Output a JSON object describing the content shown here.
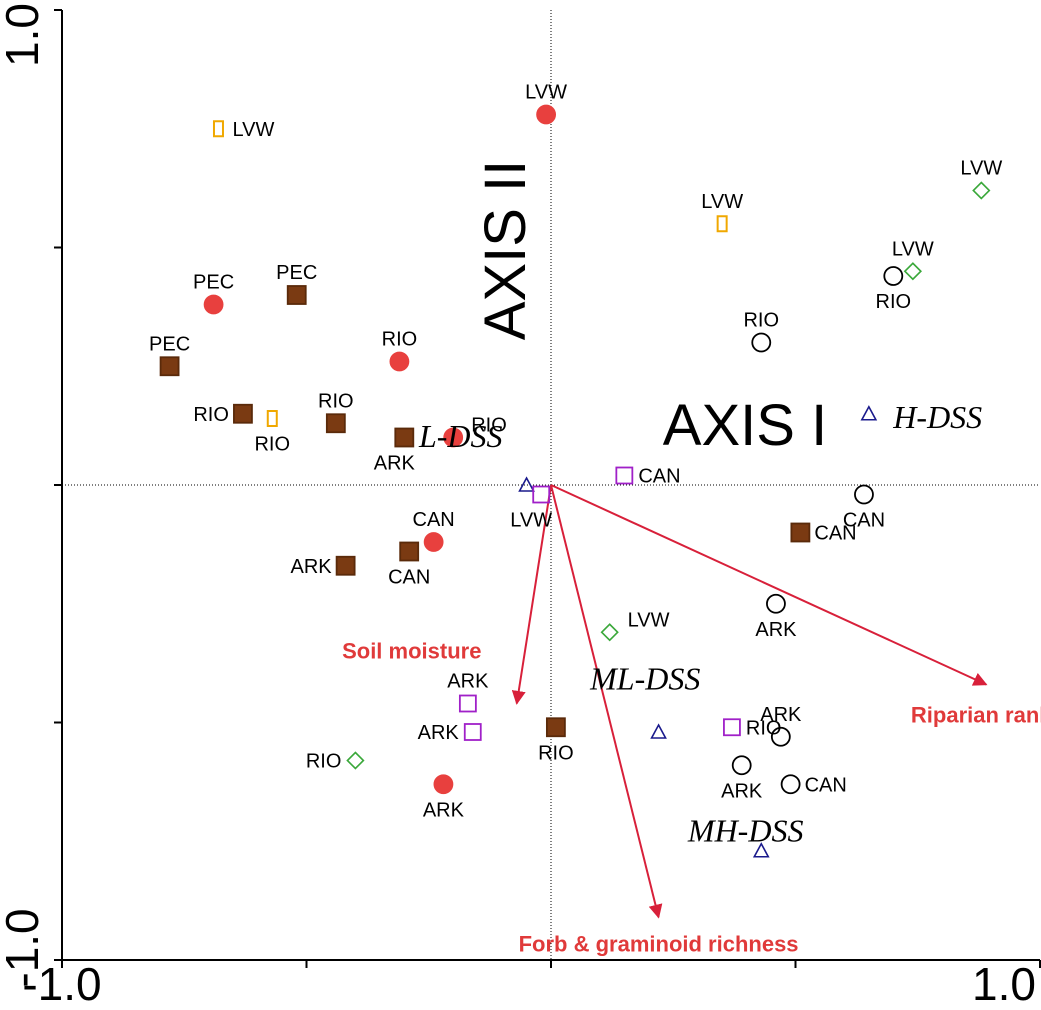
{
  "chart_data": {
    "type": "scatter",
    "title": "",
    "xlim": [
      -1.0,
      1.0
    ],
    "ylim": [
      -1.0,
      1.0
    ],
    "x_tick_labels": [
      "-1.0",
      "1.0"
    ],
    "y_tick_labels": [
      "-1.0",
      "1.0"
    ],
    "axis_names": {
      "x": "AXIS I",
      "y": "AXIS II"
    },
    "grid": false,
    "zero_lines": true,
    "marker_styles": {
      "red_circle": {
        "shape": "circle",
        "fill": "#e8403e",
        "stroke": "#e8403e"
      },
      "brown_square": {
        "shape": "square",
        "fill": "#7a3a12",
        "stroke": "#5a2a0a"
      },
      "orange_rect": {
        "shape": "tall-rect",
        "fill": "none",
        "stroke": "#f0a800"
      },
      "green_diamond": {
        "shape": "diamond",
        "fill": "none",
        "stroke": "#3aa83a"
      },
      "black_circle": {
        "shape": "circle",
        "fill": "none",
        "stroke": "#000000"
      },
      "purple_square": {
        "shape": "square",
        "fill": "none",
        "stroke": "#a020c8"
      },
      "navy_triangle": {
        "shape": "triangle",
        "fill": "none",
        "stroke": "#1a1a8c"
      }
    },
    "points": [
      {
        "x": -0.68,
        "y": 0.75,
        "label": "LVW",
        "style": "orange_rect",
        "lab_pos": "right"
      },
      {
        "x": -0.01,
        "y": 0.78,
        "label": "LVW",
        "style": "red_circle",
        "lab_pos": "above"
      },
      {
        "x": 0.35,
        "y": 0.55,
        "label": "LVW",
        "style": "orange_rect",
        "lab_pos": "above"
      },
      {
        "x": 0.88,
        "y": 0.62,
        "label": "LVW",
        "style": "green_diamond",
        "lab_pos": "above"
      },
      {
        "x": 0.74,
        "y": 0.45,
        "label": "LVW",
        "style": "green_diamond",
        "lab_pos": "above"
      },
      {
        "x": 0.7,
        "y": 0.44,
        "label": "RIO",
        "style": "black_circle",
        "lab_pos": "below"
      },
      {
        "x": 0.43,
        "y": 0.3,
        "label": "RIO",
        "style": "black_circle",
        "lab_pos": "above"
      },
      {
        "x": -0.69,
        "y": 0.38,
        "label": "PEC",
        "style": "red_circle",
        "lab_pos": "above"
      },
      {
        "x": -0.52,
        "y": 0.4,
        "label": "PEC",
        "style": "brown_square",
        "lab_pos": "above"
      },
      {
        "x": -0.78,
        "y": 0.25,
        "label": "PEC",
        "style": "brown_square",
        "lab_pos": "above"
      },
      {
        "x": -0.31,
        "y": 0.26,
        "label": "RIO",
        "style": "red_circle",
        "lab_pos": "above"
      },
      {
        "x": -0.63,
        "y": 0.15,
        "label": "RIO",
        "style": "brown_square",
        "lab_pos": "left"
      },
      {
        "x": -0.57,
        "y": 0.14,
        "label": "RIO",
        "style": "orange_rect",
        "lab_pos": "below"
      },
      {
        "x": -0.44,
        "y": 0.13,
        "label": "RIO",
        "style": "brown_square",
        "lab_pos": "above"
      },
      {
        "x": -0.3,
        "y": 0.1,
        "label": "ARK",
        "style": "brown_square",
        "lab_pos": "belowleft"
      },
      {
        "x": -0.2,
        "y": 0.1,
        "label": "RIO",
        "style": "red_circle",
        "lab_pos": "aboveright"
      },
      {
        "x": 0.15,
        "y": 0.02,
        "label": "CAN",
        "style": "purple_square",
        "lab_pos": "right"
      },
      {
        "x": -0.05,
        "y": 0.0,
        "label": "",
        "style": "navy_triangle",
        "lab_pos": "none"
      },
      {
        "x": -0.02,
        "y": -0.02,
        "label": "LVW",
        "style": "purple_square",
        "lab_pos": "belowleft"
      },
      {
        "x": 0.64,
        "y": -0.02,
        "label": "CAN",
        "style": "black_circle",
        "lab_pos": "below"
      },
      {
        "x": 0.65,
        "y": 0.15,
        "label": "",
        "style": "navy_triangle",
        "lab_pos": "none"
      },
      {
        "x": 0.51,
        "y": -0.1,
        "label": "CAN",
        "style": "brown_square",
        "lab_pos": "right"
      },
      {
        "x": -0.24,
        "y": -0.12,
        "label": "CAN",
        "style": "red_circle",
        "lab_pos": "above"
      },
      {
        "x": -0.29,
        "y": -0.14,
        "label": "CAN",
        "style": "brown_square",
        "lab_pos": "below"
      },
      {
        "x": -0.42,
        "y": -0.17,
        "label": "ARK",
        "style": "brown_square",
        "lab_pos": "left"
      },
      {
        "x": 0.12,
        "y": -0.31,
        "label": "LVW",
        "style": "green_diamond",
        "lab_pos": "aboveright"
      },
      {
        "x": 0.46,
        "y": -0.25,
        "label": "ARK",
        "style": "black_circle",
        "lab_pos": "below"
      },
      {
        "x": -0.17,
        "y": -0.46,
        "label": "ARK",
        "style": "purple_square",
        "lab_pos": "above"
      },
      {
        "x": -0.16,
        "y": -0.52,
        "label": "ARK",
        "style": "purple_square",
        "lab_pos": "left"
      },
      {
        "x": 0.01,
        "y": -0.51,
        "label": "RIO",
        "style": "brown_square",
        "lab_pos": "below"
      },
      {
        "x": 0.22,
        "y": -0.52,
        "label": "",
        "style": "navy_triangle",
        "lab_pos": "none"
      },
      {
        "x": 0.37,
        "y": -0.51,
        "label": "RIO",
        "style": "purple_square",
        "lab_pos": "right"
      },
      {
        "x": 0.47,
        "y": -0.53,
        "label": "ARK",
        "style": "black_circle",
        "lab_pos": "above"
      },
      {
        "x": -0.4,
        "y": -0.58,
        "label": "RIO",
        "style": "green_diamond",
        "lab_pos": "left"
      },
      {
        "x": -0.22,
        "y": -0.63,
        "label": "ARK",
        "style": "red_circle",
        "lab_pos": "below"
      },
      {
        "x": 0.39,
        "y": -0.59,
        "label": "ARK",
        "style": "black_circle",
        "lab_pos": "below"
      },
      {
        "x": 0.49,
        "y": -0.63,
        "label": "CAN",
        "style": "black_circle",
        "lab_pos": "right"
      },
      {
        "x": 0.43,
        "y": -0.77,
        "label": "",
        "style": "navy_triangle",
        "lab_pos": "none"
      }
    ],
    "centroid_labels": [
      {
        "x": -0.27,
        "y": 0.08,
        "text": "L-DSS"
      },
      {
        "x": 0.7,
        "y": 0.12,
        "text": "H-DSS"
      },
      {
        "x": 0.08,
        "y": -0.43,
        "text": "ML-DSS"
      },
      {
        "x": 0.28,
        "y": -0.75,
        "text": "MH-DSS"
      }
    ],
    "vectors": [
      {
        "name": "Soil moisture",
        "x": -0.14,
        "y": -0.92
      },
      {
        "name": "Riparian rank",
        "x": 1.78,
        "y": -0.84
      },
      {
        "name": "Forb & graminoid richness",
        "x": 0.44,
        "y": -1.82
      }
    ]
  }
}
